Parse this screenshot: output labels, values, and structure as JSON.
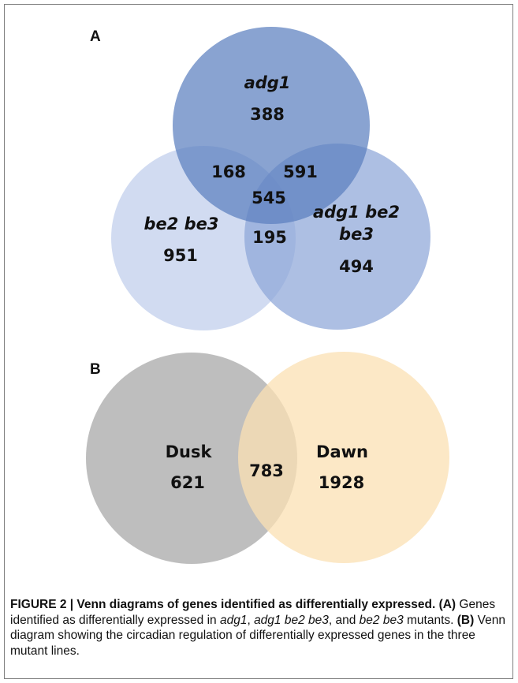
{
  "panel_a": {
    "letter": "A",
    "sets": [
      {
        "label": "adg1",
        "label_line2": "",
        "value": "388",
        "color": "#5b7fbf"
      },
      {
        "label": "be2 be3",
        "label_line2": "",
        "value": "951",
        "color": "#c7d3ee"
      },
      {
        "label": "adg1 be2",
        "label_line2": "be3",
        "value": "494",
        "color": "#8ea6d8"
      }
    ],
    "intersections": {
      "adg1_be2be3": "168",
      "adg1_adg1be2be3": "591",
      "be2be3_adg1be2be3": "195",
      "all_three": "545"
    }
  },
  "panel_b": {
    "letter": "B",
    "sets": [
      {
        "label": "Dusk",
        "value": "621",
        "color": "#b3b3b3"
      },
      {
        "label": "Dawn",
        "value": "1928",
        "color": "#fbe0b3"
      }
    ],
    "intersection": "783"
  },
  "caption": {
    "fig_label": "FIGURE 2 | Venn diagrams of genes identified as differentially expressed.",
    "a_tag": "(A)",
    "a_text_1": " Genes identified as differentially expressed in ",
    "a_g1": "adg1",
    "a_sep1": ", ",
    "a_g2": "adg1 be2 be3",
    "a_sep2": ", and ",
    "a_g3": "be2 be3",
    "a_text_2": " mutants. ",
    "b_tag": "(B)",
    "b_text": " Venn diagram showing the circadian regulation of differentially expressed genes in the three mutant lines."
  }
}
